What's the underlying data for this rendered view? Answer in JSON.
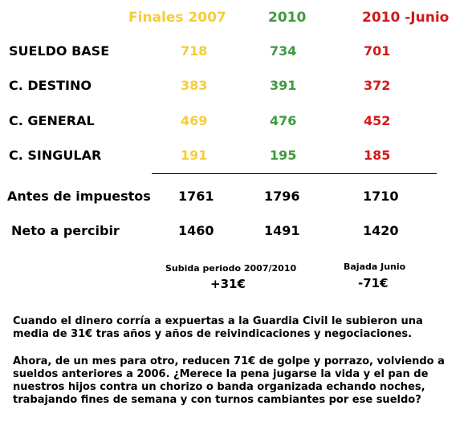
{
  "headers": [
    "Finales 2007",
    "2010",
    "2010 -Junio"
  ],
  "rows": [
    {
      "label": "SUELDO BASE",
      "values": [
        "718",
        "734",
        "701"
      ]
    },
    {
      "label": "C. DESTINO",
      "values": [
        "383",
        "391",
        "372"
      ]
    },
    {
      "label": "C. GENERAL",
      "values": [
        "469",
        "476",
        "452"
      ]
    },
    {
      "label": "C. SINGULAR",
      "values": [
        "191",
        "195",
        "185"
      ]
    }
  ],
  "totals": [
    {
      "label": "Antes de impuestos",
      "values": [
        "1761",
        "1796",
        "1710"
      ]
    },
    {
      "label": "Neto a percibir",
      "values": [
        "1460",
        "1491",
        "1420"
      ]
    }
  ],
  "changes": {
    "rise_label": "Subida periodo 2007/2010",
    "rise_value": "+31€",
    "drop_label": "Bajada Junio",
    "drop_value": "-71€"
  },
  "paragraphs": [
    "Cuando el dinero corría  a expuertas a la Guardia Civil le subieron una media de 31€ tras años y años de reivindicaciones y negociaciones.",
    "Ahora, de un mes para otro, reducen 71€ de golpe y porrazo, volviendo a sueldos anteriores a 2006. ¿Merece la pena jugarse la vida y el pan de nuestros hijos contra un chorizo o banda organizada echando noches, trabajando fines de semana y con turnos cambiantes por ese sueldo?"
  ],
  "colors": {
    "col_2007": "#f5cd3a",
    "col_2010": "#3f9a3f",
    "col_2010_junio": "#d11a1a"
  }
}
